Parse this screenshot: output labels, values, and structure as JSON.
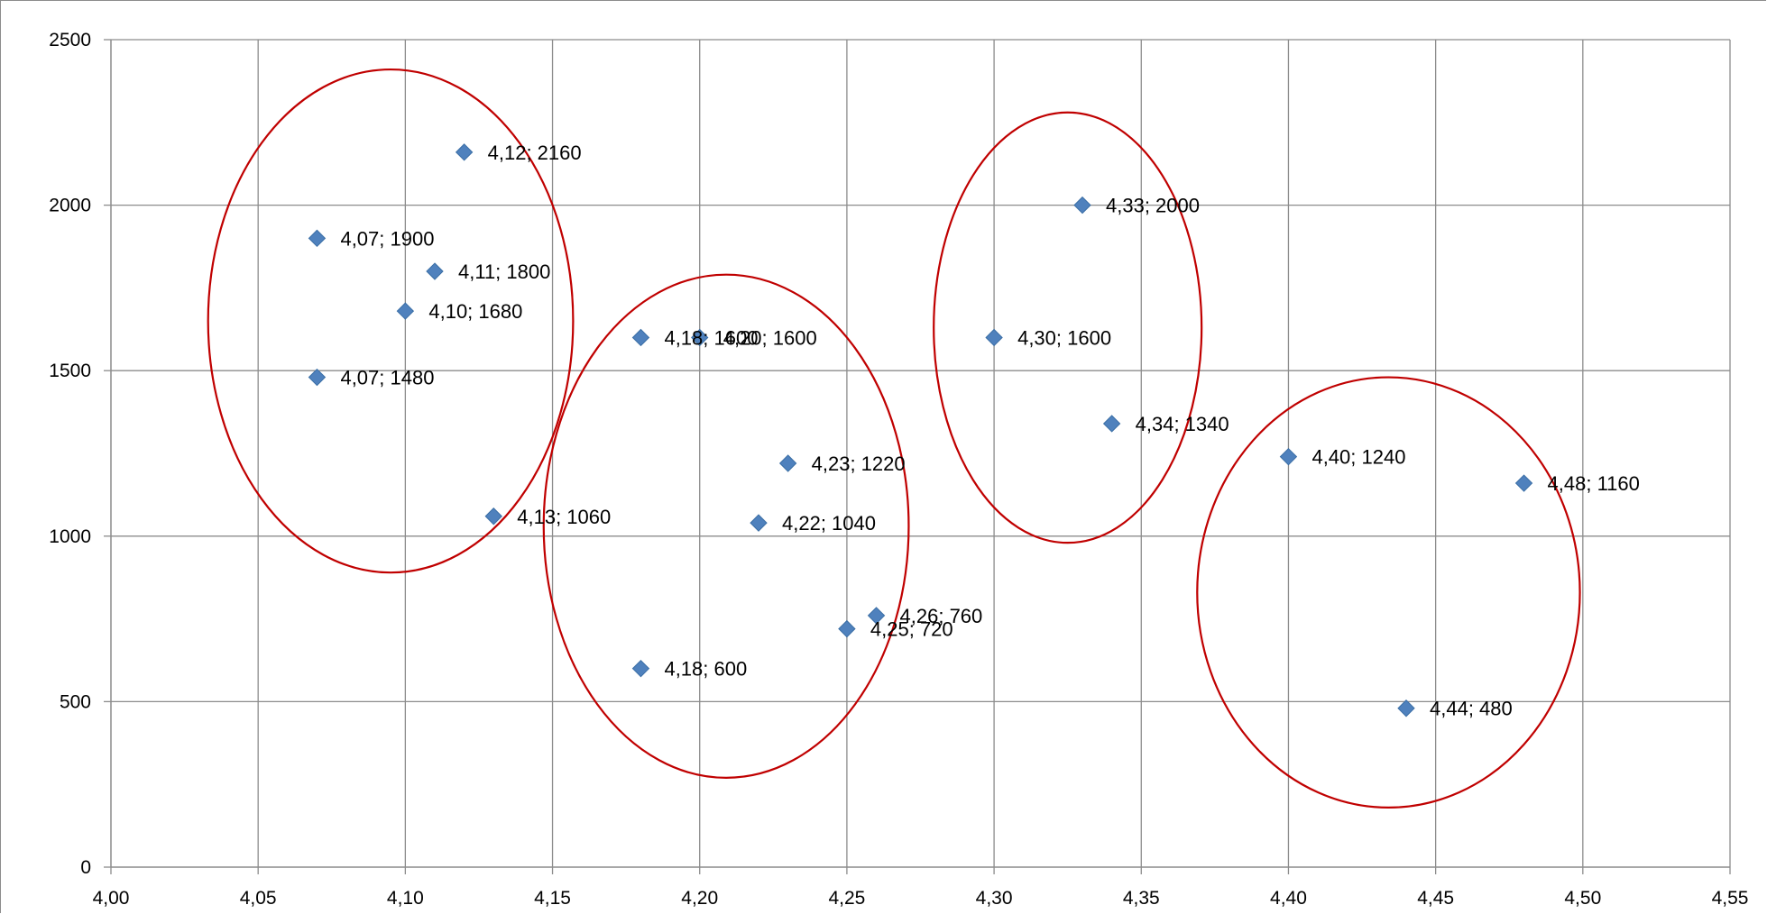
{
  "chart_data": {
    "type": "scatter",
    "title": "",
    "xlabel": "",
    "ylabel": "",
    "xlim": [
      4.0,
      4.55
    ],
    "ylim": [
      0,
      2500
    ],
    "x_ticks": [
      "4,00",
      "4,05",
      "4,10",
      "4,15",
      "4,20",
      "4,25",
      "4,30",
      "4,35",
      "4,40",
      "4,45",
      "4,50",
      "4,55"
    ],
    "y_ticks": [
      "0",
      "500",
      "1000",
      "1500",
      "2000",
      "2500"
    ],
    "grid": true,
    "legend": "none",
    "marker_color": "#4f81bd",
    "series": [
      {
        "points": [
          {
            "x": 4.12,
            "y": 2160,
            "label": "4,12; 2160"
          },
          {
            "x": 4.07,
            "y": 1900,
            "label": "4,07; 1900"
          },
          {
            "x": 4.11,
            "y": 1800,
            "label": "4,11; 1800"
          },
          {
            "x": 4.1,
            "y": 1680,
            "label": "4,10; 1680"
          },
          {
            "x": 4.07,
            "y": 1480,
            "label": "4,07; 1480"
          },
          {
            "x": 4.13,
            "y": 1060,
            "label": "4,13; 1060"
          },
          {
            "x": 4.18,
            "y": 1600,
            "label": "4,18; 1600"
          },
          {
            "x": 4.2,
            "y": 1600,
            "label": "4,20; 1600"
          },
          {
            "x": 4.23,
            "y": 1220,
            "label": "4,23; 1220"
          },
          {
            "x": 4.22,
            "y": 1040,
            "label": "4,22; 1040"
          },
          {
            "x": 4.26,
            "y": 760,
            "label": "4,26; 760"
          },
          {
            "x": 4.25,
            "y": 720,
            "label": "4,25; 720"
          },
          {
            "x": 4.18,
            "y": 600,
            "label": "4,18; 600"
          },
          {
            "x": 4.33,
            "y": 2000,
            "label": "4,33; 2000"
          },
          {
            "x": 4.3,
            "y": 1600,
            "label": "4,30; 1600"
          },
          {
            "x": 4.34,
            "y": 1340,
            "label": "4,34; 1340"
          },
          {
            "x": 4.4,
            "y": 1240,
            "label": "4,40; 1240"
          },
          {
            "x": 4.48,
            "y": 1160,
            "label": "4,48; 1160"
          },
          {
            "x": 4.44,
            "y": 480,
            "label": "4,44; 480"
          }
        ]
      }
    ],
    "annotations": {
      "ellipse_color": "#c00000",
      "ellipses": [
        {
          "cx": 4.095,
          "cy": 1650,
          "rx": 0.062,
          "ry": 760
        },
        {
          "cx": 4.209,
          "cy": 1030,
          "rx": 0.062,
          "ry": 760
        },
        {
          "cx": 4.325,
          "cy": 1630,
          "rx": 0.0455,
          "ry": 650
        },
        {
          "cx": 4.434,
          "cy": 830,
          "rx": 0.065,
          "ry": 650
        }
      ]
    }
  }
}
